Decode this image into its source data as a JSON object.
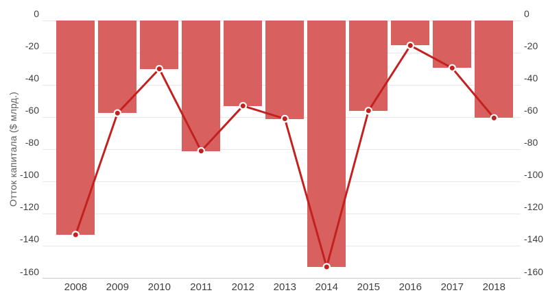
{
  "chart_data": {
    "type": "bar",
    "overlay": "line-with-points",
    "categories": [
      "2008",
      "2009",
      "2010",
      "2011",
      "2012",
      "2013",
      "2014",
      "2015",
      "2016",
      "2017",
      "2018"
    ],
    "values": [
      -133,
      -57.5,
      -30,
      -81,
      -53,
      -61,
      -153,
      -56,
      -15.5,
      -29.5,
      -60.5
    ],
    "ylabel": "Отток капитала ($ млрд.)",
    "xlabel": "",
    "ylim": [
      -160,
      0
    ],
    "yticks": [
      "0",
      "-20",
      "-40",
      "-60",
      "-80",
      "-100",
      "-120",
      "-140",
      "-160"
    ],
    "y_axis_labels_sides": "both",
    "grid": "horizontal",
    "legend": "none",
    "colors": {
      "bar": "#d8605f",
      "line": "#c32120",
      "point_fill": "#c32120",
      "point_ring": "#ffffff",
      "gridline": "#e8e8e8",
      "axis_line": "#c9c9c9",
      "tick_text": "#3f3f3f",
      "axis_title_text": "#5f5f5f",
      "background": "#ffffff"
    }
  }
}
